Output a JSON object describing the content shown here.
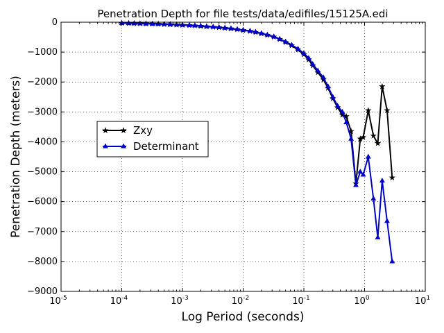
{
  "chart_data": {
    "type": "line",
    "title": "Penetration Depth for file tests/data/edifiles/15125A.edi",
    "xlabel": "Log Period (seconds)",
    "ylabel": "Penetration Depth (meters)",
    "xscale": "log",
    "xlim": [
      1e-05,
      10
    ],
    "ylim": [
      -9000,
      0
    ],
    "x_ticks": [
      {
        "value": 1e-05,
        "base": "10",
        "exp": "-5"
      },
      {
        "value": 0.0001,
        "base": "10",
        "exp": "-4"
      },
      {
        "value": 0.001,
        "base": "10",
        "exp": "-3"
      },
      {
        "value": 0.01,
        "base": "10",
        "exp": "-2"
      },
      {
        "value": 0.1,
        "base": "10",
        "exp": "-1"
      },
      {
        "value": 1,
        "base": "10",
        "exp": "0"
      },
      {
        "value": 10,
        "base": "10",
        "exp": "1"
      }
    ],
    "y_ticks": [
      0,
      -1000,
      -2000,
      -3000,
      -4000,
      -5000,
      -6000,
      -7000,
      -8000,
      -9000
    ],
    "y_tick_labels": [
      "0",
      "−1000",
      "−2000",
      "−3000",
      "−4000",
      "−5000",
      "−6000",
      "−7000",
      "−8000",
      "−9000"
    ],
    "grid": true,
    "legend": "center-left",
    "series": [
      {
        "name": "Zxy",
        "color": "#000000",
        "marker": "star",
        "x": [
          0.0001,
          0.00013,
          0.00016,
          0.0002,
          0.00025,
          0.00032,
          0.0004,
          0.0005,
          0.00063,
          0.0008,
          0.001,
          0.0013,
          0.0016,
          0.002,
          0.0025,
          0.0032,
          0.004,
          0.005,
          0.0063,
          0.008,
          0.01,
          0.013,
          0.016,
          0.02,
          0.025,
          0.032,
          0.04,
          0.05,
          0.063,
          0.08,
          0.1,
          0.12,
          0.14,
          0.17,
          0.21,
          0.25,
          0.3,
          0.36,
          0.43,
          0.5,
          0.6,
          0.72,
          0.85,
          0.95,
          1.15,
          1.4,
          1.65,
          1.95,
          2.35,
          2.85
        ],
        "y": [
          -30,
          -35,
          -40,
          -45,
          -50,
          -55,
          -60,
          -70,
          -75,
          -85,
          -95,
          -105,
          -115,
          -130,
          -145,
          -160,
          -175,
          -195,
          -215,
          -240,
          -270,
          -300,
          -335,
          -380,
          -430,
          -490,
          -570,
          -670,
          -780,
          -920,
          -1080,
          -1250,
          -1450,
          -1680,
          -1920,
          -2200,
          -2550,
          -2850,
          -3100,
          -3150,
          -3650,
          -5400,
          -3900,
          -3850,
          -2950,
          -3800,
          -4050,
          -2150,
          -2950,
          -5200
        ]
      },
      {
        "name": "Determinant",
        "color": "#0000cc",
        "marker": "triangle",
        "x": [
          0.0001,
          0.00013,
          0.00016,
          0.0002,
          0.00025,
          0.00032,
          0.0004,
          0.0005,
          0.00063,
          0.0008,
          0.001,
          0.0013,
          0.0016,
          0.002,
          0.0025,
          0.0032,
          0.004,
          0.005,
          0.0063,
          0.008,
          0.01,
          0.013,
          0.016,
          0.02,
          0.025,
          0.032,
          0.04,
          0.05,
          0.063,
          0.08,
          0.1,
          0.12,
          0.14,
          0.17,
          0.21,
          0.25,
          0.3,
          0.36,
          0.43,
          0.5,
          0.6,
          0.72,
          0.85,
          0.95,
          1.15,
          1.4,
          1.65,
          1.95,
          2.35,
          2.85
        ],
        "y": [
          -30,
          -35,
          -40,
          -45,
          -50,
          -55,
          -60,
          -65,
          -75,
          -85,
          -90,
          -100,
          -110,
          -125,
          -140,
          -155,
          -170,
          -190,
          -210,
          -235,
          -260,
          -290,
          -325,
          -370,
          -420,
          -480,
          -560,
          -650,
          -760,
          -890,
          -1040,
          -1200,
          -1400,
          -1620,
          -1850,
          -2150,
          -2500,
          -2800,
          -3000,
          -3350,
          -3900,
          -5450,
          -5000,
          -5100,
          -4500,
          -5900,
          -7200,
          -5300,
          -6650,
          -8000
        ]
      }
    ]
  }
}
